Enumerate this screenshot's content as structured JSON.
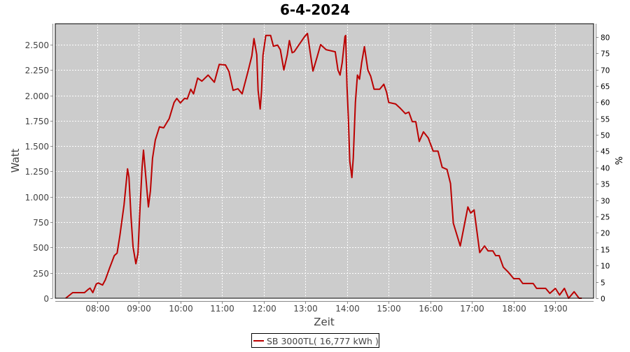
{
  "chart_data": {
    "type": "line",
    "title": "6-4-2024",
    "xlabel": "Zeit",
    "ylabel": "Watt",
    "y2label": "%",
    "xlim": [
      "07:00",
      "19:55"
    ],
    "ylim": [
      0,
      2706
    ],
    "y2lim": [
      0,
      84
    ],
    "grid": true,
    "legend_position": "bottom",
    "x_ticks": [
      "08:00",
      "09:00",
      "10:00",
      "11:00",
      "12:00",
      "13:00",
      "14:00",
      "15:00",
      "16:00",
      "17:00",
      "18:00",
      "19:00"
    ],
    "y_ticks": [
      {
        "v": 0,
        "label": "0"
      },
      {
        "v": 250,
        "label": "250"
      },
      {
        "v": 500,
        "label": "500"
      },
      {
        "v": 750,
        "label": "750"
      },
      {
        "v": 1000,
        "label": "1.000"
      },
      {
        "v": 1250,
        "label": "1.250"
      },
      {
        "v": 1500,
        "label": "1.500"
      },
      {
        "v": 1750,
        "label": "1.750"
      },
      {
        "v": 2000,
        "label": "2.000"
      },
      {
        "v": 2250,
        "label": "2.250"
      },
      {
        "v": 2500,
        "label": "2.500"
      }
    ],
    "y2_ticks": [
      0,
      5,
      10,
      15,
      20,
      25,
      30,
      35,
      40,
      45,
      50,
      55,
      60,
      65,
      70,
      75,
      80
    ],
    "colors": {
      "series": "#bb0000",
      "plot_bg": "#cccccc",
      "grid": "#ffffff"
    },
    "series": [
      {
        "name": "SB 3000TL( 16,777 kWh )",
        "points": [
          [
            "07:15",
            0
          ],
          [
            "07:25",
            55
          ],
          [
            "07:42",
            55
          ],
          [
            "07:47",
            85
          ],
          [
            "07:50",
            100
          ],
          [
            "07:54",
            55
          ],
          [
            "07:59",
            140
          ],
          [
            "08:02",
            150
          ],
          [
            "08:08",
            130
          ],
          [
            "08:12",
            180
          ],
          [
            "08:18",
            295
          ],
          [
            "08:25",
            420
          ],
          [
            "08:29",
            445
          ],
          [
            "08:33",
            620
          ],
          [
            "08:39",
            920
          ],
          [
            "08:44",
            1275
          ],
          [
            "08:46",
            1195
          ],
          [
            "08:49",
            800
          ],
          [
            "08:52",
            505
          ],
          [
            "08:56",
            340
          ],
          [
            "08:59",
            440
          ],
          [
            "09:02",
            900
          ],
          [
            "09:05",
            1290
          ],
          [
            "09:07",
            1460
          ],
          [
            "09:10",
            1220
          ],
          [
            "09:14",
            900
          ],
          [
            "09:17",
            1060
          ],
          [
            "09:20",
            1380
          ],
          [
            "09:24",
            1560
          ],
          [
            "09:30",
            1690
          ],
          [
            "09:36",
            1680
          ],
          [
            "09:44",
            1770
          ],
          [
            "09:51",
            1930
          ],
          [
            "09:55",
            1970
          ],
          [
            "10:00",
            1925
          ],
          [
            "10:06",
            1970
          ],
          [
            "10:10",
            1965
          ],
          [
            "10:15",
            2060
          ],
          [
            "10:19",
            2015
          ],
          [
            "10:25",
            2170
          ],
          [
            "10:31",
            2140
          ],
          [
            "10:40",
            2200
          ],
          [
            "10:49",
            2130
          ],
          [
            "10:56",
            2305
          ],
          [
            "11:05",
            2300
          ],
          [
            "11:10",
            2235
          ],
          [
            "11:16",
            2050
          ],
          [
            "11:23",
            2065
          ],
          [
            "11:29",
            2015
          ],
          [
            "11:38",
            2250
          ],
          [
            "11:43",
            2390
          ],
          [
            "11:46",
            2560
          ],
          [
            "11:50",
            2400
          ],
          [
            "11:52",
            2050
          ],
          [
            "11:55",
            1865
          ],
          [
            "11:57",
            2050
          ],
          [
            "11:59",
            2395
          ],
          [
            "12:03",
            2590
          ],
          [
            "12:10",
            2590
          ],
          [
            "12:14",
            2485
          ],
          [
            "12:20",
            2495
          ],
          [
            "12:24",
            2450
          ],
          [
            "12:29",
            2250
          ],
          [
            "12:34",
            2400
          ],
          [
            "12:37",
            2540
          ],
          [
            "12:41",
            2420
          ],
          [
            "12:44",
            2430
          ],
          [
            "12:59",
            2580
          ],
          [
            "13:03",
            2610
          ],
          [
            "13:07",
            2420
          ],
          [
            "13:11",
            2240
          ],
          [
            "13:17",
            2380
          ],
          [
            "13:22",
            2500
          ],
          [
            "13:30",
            2450
          ],
          [
            "13:43",
            2430
          ],
          [
            "13:47",
            2250
          ],
          [
            "13:50",
            2200
          ],
          [
            "13:53",
            2320
          ],
          [
            "13:57",
            2580
          ],
          [
            "13:58",
            2590
          ],
          [
            "14:00",
            2090
          ],
          [
            "14:02",
            1770
          ],
          [
            "14:04",
            1350
          ],
          [
            "14:07",
            1190
          ],
          [
            "14:09",
            1385
          ],
          [
            "14:12",
            1930
          ],
          [
            "14:15",
            2200
          ],
          [
            "14:18",
            2160
          ],
          [
            "14:21",
            2320
          ],
          [
            "14:25",
            2480
          ],
          [
            "14:30",
            2250
          ],
          [
            "14:34",
            2190
          ],
          [
            "14:39",
            2060
          ],
          [
            "14:47",
            2060
          ],
          [
            "14:53",
            2110
          ],
          [
            "14:57",
            2030
          ],
          [
            "15:00",
            1930
          ],
          [
            "15:10",
            1915
          ],
          [
            "15:17",
            1870
          ],
          [
            "15:24",
            1820
          ],
          [
            "15:29",
            1835
          ],
          [
            "15:34",
            1740
          ],
          [
            "15:39",
            1740
          ],
          [
            "15:44",
            1545
          ],
          [
            "15:50",
            1640
          ],
          [
            "15:57",
            1580
          ],
          [
            "16:04",
            1450
          ],
          [
            "16:11",
            1450
          ],
          [
            "16:17",
            1290
          ],
          [
            "16:24",
            1270
          ],
          [
            "16:29",
            1130
          ],
          [
            "16:33",
            740
          ],
          [
            "16:43",
            515
          ],
          [
            "16:54",
            900
          ],
          [
            "16:58",
            840
          ],
          [
            "17:03",
            870
          ],
          [
            "17:11",
            450
          ],
          [
            "17:18",
            515
          ],
          [
            "17:23",
            467
          ],
          [
            "17:30",
            467
          ],
          [
            "17:34",
            420
          ],
          [
            "17:39",
            420
          ],
          [
            "17:45",
            306
          ],
          [
            "17:52",
            258
          ],
          [
            "18:00",
            193
          ],
          [
            "18:08",
            193
          ],
          [
            "18:13",
            145
          ],
          [
            "18:28",
            145
          ],
          [
            "18:33",
            97
          ],
          [
            "18:46",
            97
          ],
          [
            "18:52",
            48
          ],
          [
            "19:00",
            97
          ],
          [
            "19:06",
            32
          ],
          [
            "19:13",
            97
          ],
          [
            "19:19",
            0
          ],
          [
            "19:27",
            64
          ],
          [
            "19:34",
            0
          ],
          [
            "19:38",
            0
          ]
        ]
      }
    ]
  }
}
